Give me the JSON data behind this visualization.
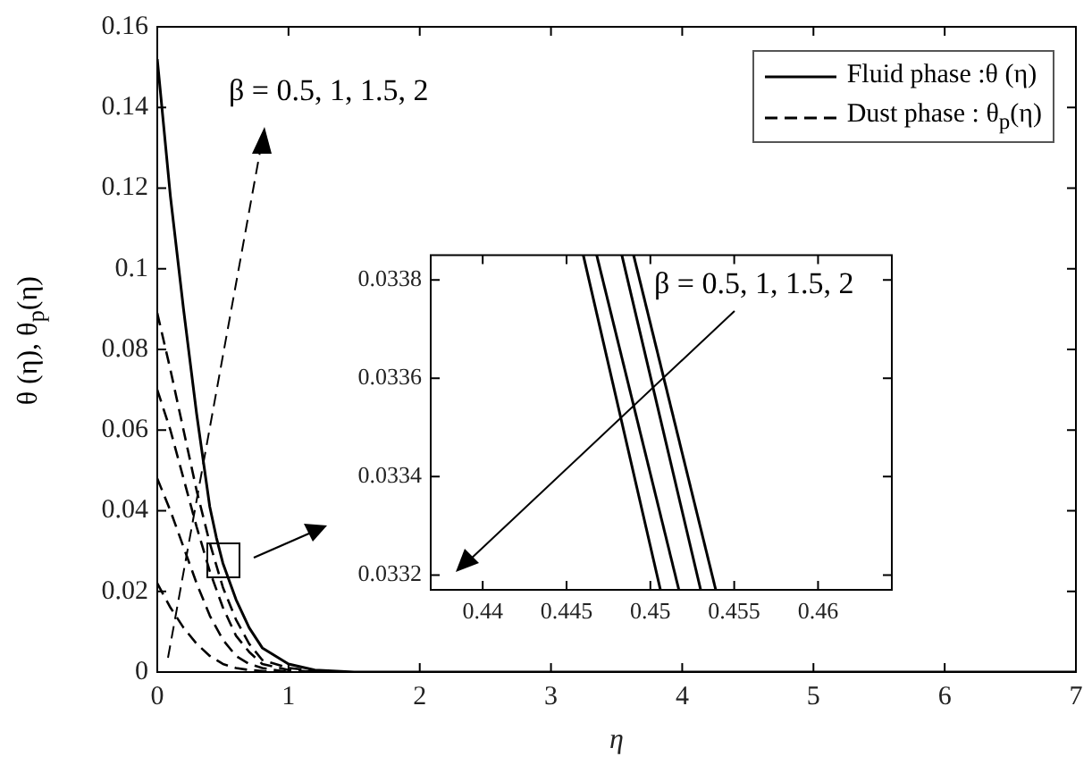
{
  "chart_data": [
    {
      "type": "line",
      "xlabel": "η",
      "ylabel": "θ (η), θ$_{p}$(η)",
      "xlim": [
        0,
        7
      ],
      "ylim": [
        0,
        0.16
      ],
      "xticks": [
        0,
        1,
        2,
        3,
        4,
        5,
        6,
        7
      ],
      "yticks": [
        0,
        0.02,
        0.04,
        0.06,
        0.08,
        0.1,
        0.12,
        0.14,
        0.16
      ],
      "legend": "top right",
      "annotations": [
        "β = 0.5, 1, 1.5, 2"
      ],
      "series": [
        {
          "name": "Fluid phase :θ (η)",
          "color": "#000000",
          "line_style": "solid",
          "x": [
            0,
            0.1,
            0.2,
            0.3,
            0.4,
            0.45,
            0.5,
            0.6,
            0.7,
            0.8,
            1,
            1.2,
            1.5,
            7
          ],
          "values": [
            0.152,
            0.118,
            0.09,
            0.064,
            0.041,
            0.0334,
            0.027,
            0.018,
            0.011,
            0.006,
            0.002,
            0.0005,
            0,
            0
          ]
        },
        {
          "name": "Dust phase : θ$_{p}$(η)",
          "color": "#000000",
          "line_style": "dashed",
          "x": [
            0,
            0.1,
            0.2,
            0.3,
            0.4,
            0.5,
            0.6,
            0.7,
            0.8,
            1,
            1.3
          ],
          "values": [
            0.089,
            0.075,
            0.06,
            0.045,
            0.032,
            0.021,
            0.013,
            0.007,
            0.003,
            0.001,
            0
          ]
        },
        {
          "color": "#000000",
          "line_style": "dashed",
          "x": [
            0,
            0.1,
            0.2,
            0.3,
            0.4,
            0.5,
            0.6,
            0.7,
            0.8,
            1,
            1.2
          ],
          "values": [
            0.07,
            0.06,
            0.048,
            0.036,
            0.025,
            0.016,
            0.009,
            0.005,
            0.002,
            0.0005,
            0
          ]
        },
        {
          "color": "#000000",
          "line_style": "dashed",
          "x": [
            0,
            0.1,
            0.2,
            0.3,
            0.4,
            0.5,
            0.6,
            0.7,
            0.8,
            1
          ],
          "values": [
            0.048,
            0.04,
            0.031,
            0.022,
            0.014,
            0.008,
            0.004,
            0.002,
            0.001,
            0
          ]
        },
        {
          "color": "#000000",
          "line_style": "dashed",
          "x": [
            0,
            0.1,
            0.2,
            0.3,
            0.4,
            0.5,
            0.6,
            0.7,
            0.9
          ],
          "values": [
            0.022,
            0.016,
            0.011,
            0.007,
            0.004,
            0.002,
            0.001,
            0.0005,
            0
          ]
        }
      ]
    },
    {
      "type": "line",
      "xlim": [
        0.4369,
        0.4644
      ],
      "ylim": [
        0.03317,
        0.03385
      ],
      "xticks": [
        0.44,
        0.445,
        0.45,
        0.455,
        0.46
      ],
      "yticks": [
        0.0332,
        0.0334,
        0.0336,
        0.0338
      ],
      "annotations": [
        "β = 0.5, 1, 1.5, 2"
      ],
      "series": [
        {
          "color": "#000000",
          "line_style": "solid",
          "x": [
            0.446,
            0.4506
          ],
          "values": [
            0.03385,
            0.03317
          ]
        },
        {
          "color": "#000000",
          "line_style": "solid",
          "x": [
            0.4468,
            0.4517
          ],
          "values": [
            0.03385,
            0.03317
          ]
        },
        {
          "color": "#000000",
          "line_style": "solid",
          "x": [
            0.4483,
            0.453
          ],
          "values": [
            0.03385,
            0.03317
          ]
        },
        {
          "color": "#000000",
          "line_style": "solid",
          "x": [
            0.449,
            0.4539
          ],
          "values": [
            0.03385,
            0.03317
          ]
        }
      ]
    }
  ]
}
